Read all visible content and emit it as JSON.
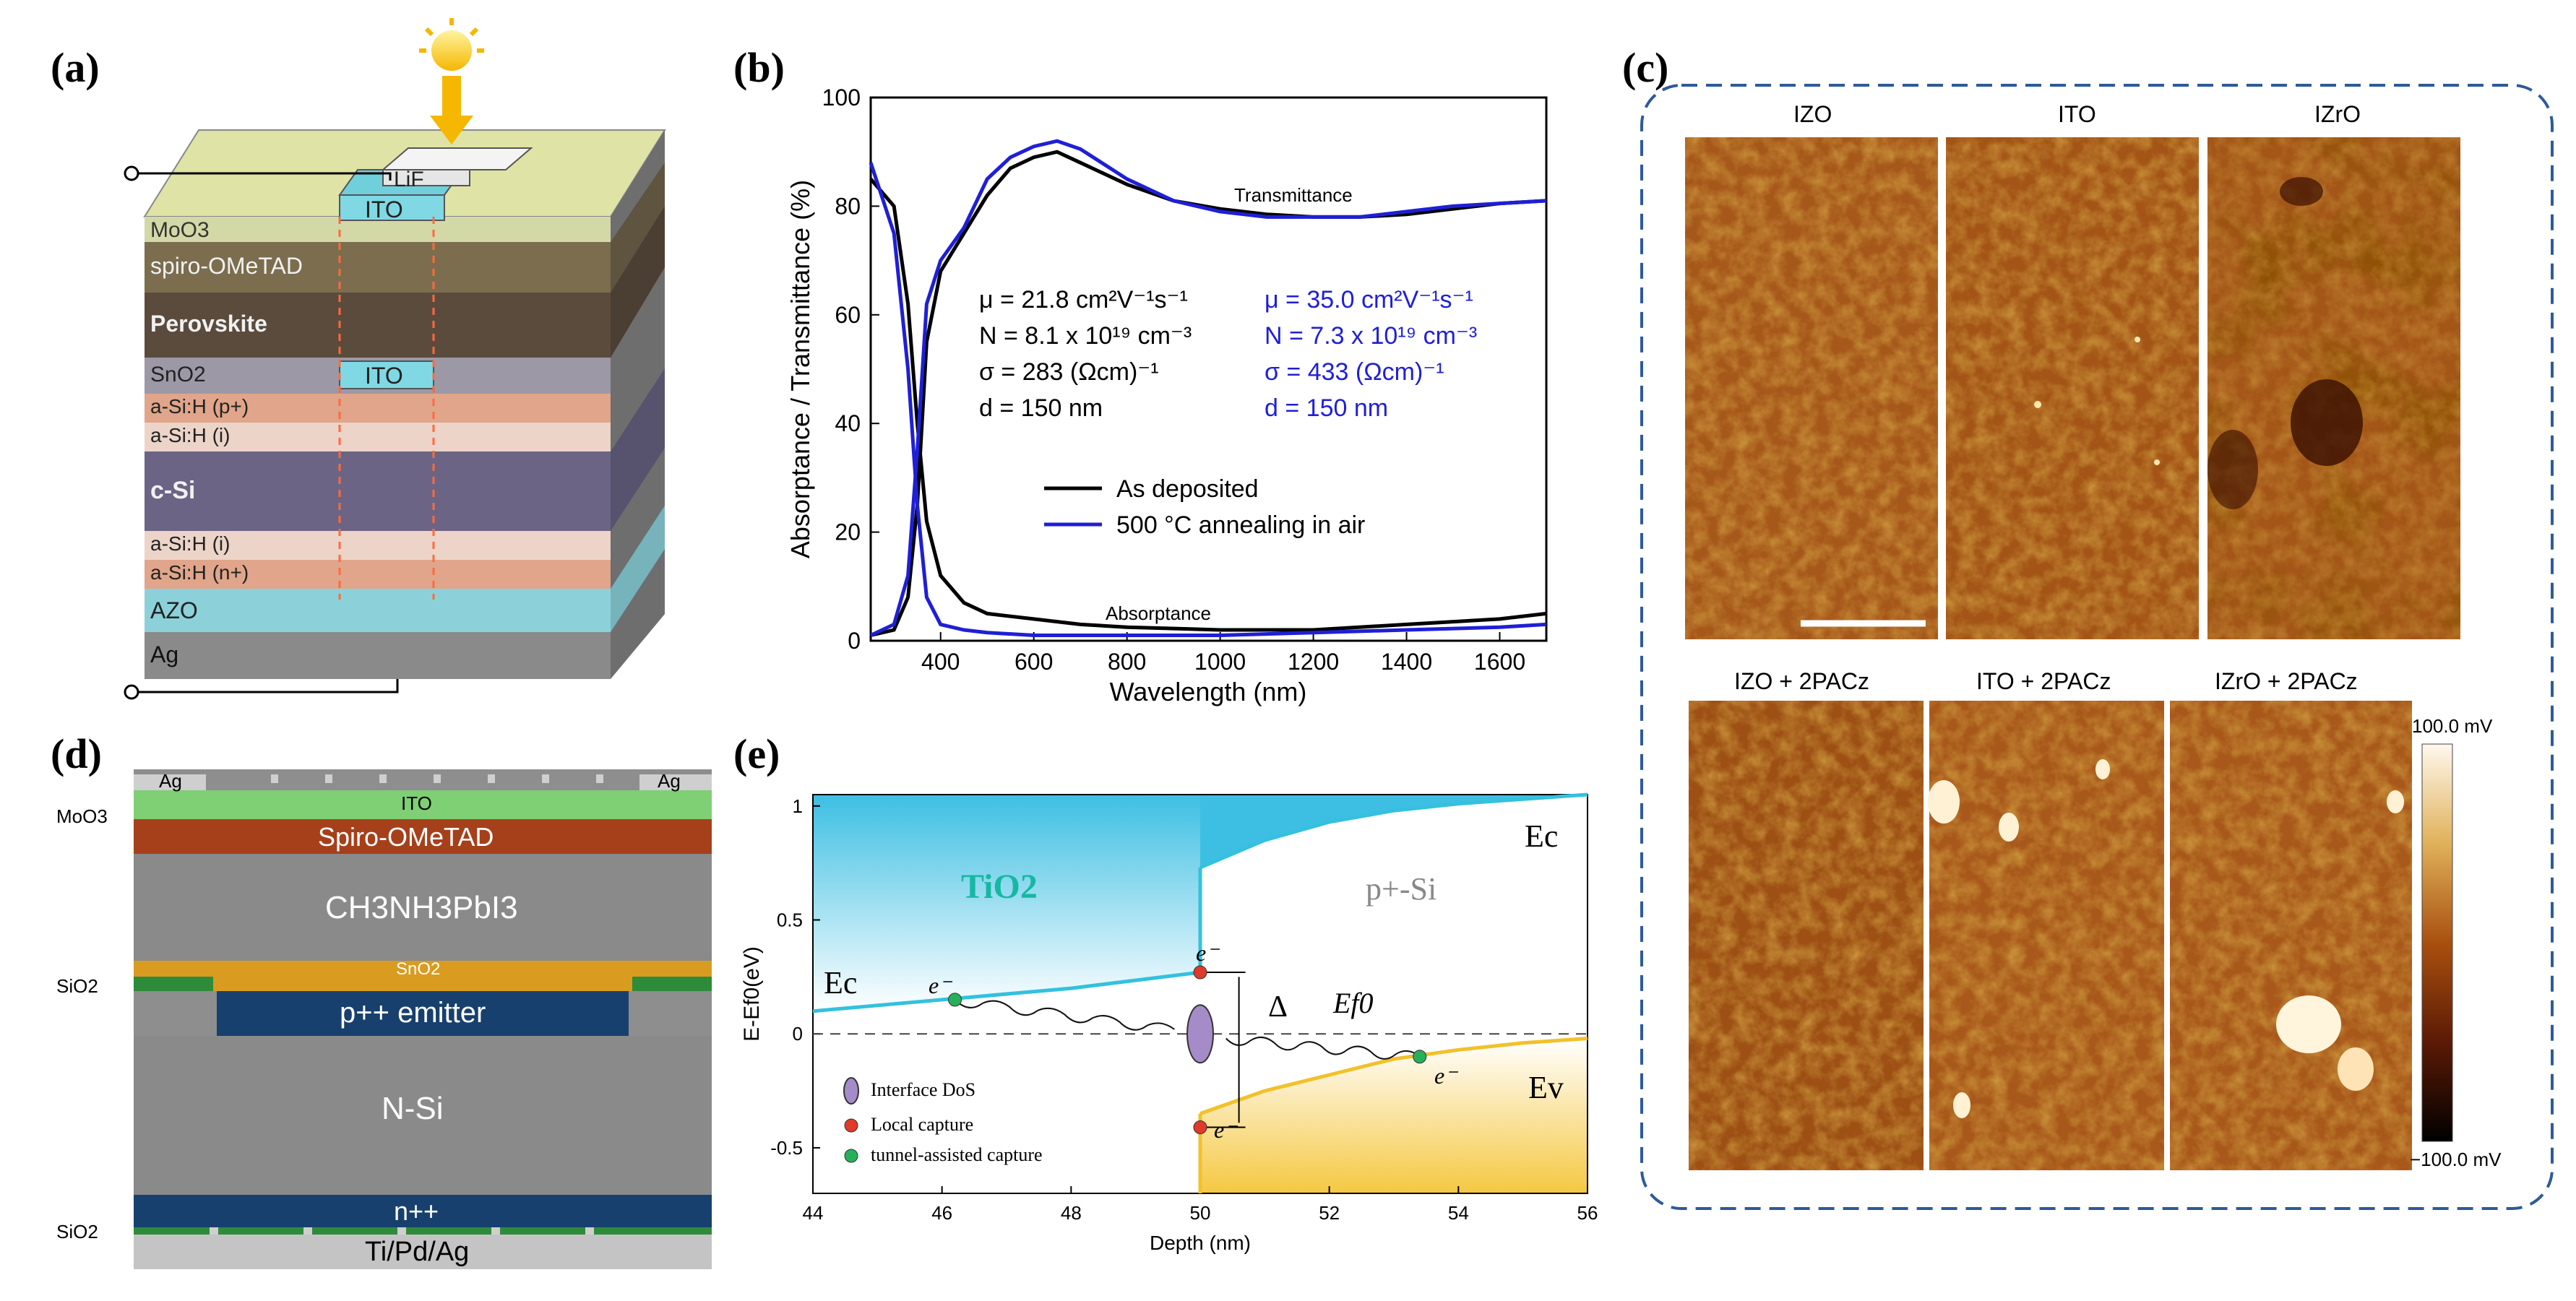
{
  "panels": {
    "a": {
      "label": "(a)",
      "layers": [
        "MoO3",
        "spiro-OMeTAD",
        "Perovskite",
        "SnO2",
        "a-Si:H (p+)",
        "a-Si:H (i)",
        "c-Si",
        "a-Si:H (i)",
        "a-Si:H (n+)",
        "AZO",
        "Ag"
      ],
      "top_labels": [
        "LiF",
        "ITO"
      ],
      "mid_ito": "ITO",
      "colors": {
        "moo3": "#d6dcaa",
        "spiro": "#7b6d4e",
        "perovskite": "#5a4a3c",
        "sno2": "#9d98a6",
        "asi_p": "#e3a98f",
        "asi_i": "#ebd3c6",
        "csi": "#6d6687",
        "asi_n": "#e3a98f",
        "azo": "#8fd3db",
        "ag": "#8c8c8c",
        "ito": "#6fd0dc"
      }
    },
    "b": {
      "label": "(b)",
      "annot_black": [
        "μ = 21.8 cm²V⁻¹s⁻¹",
        "N = 8.1 x 10¹⁹ cm⁻³",
        "σ = 283 (Ωcm)⁻¹",
        "d = 150 nm"
      ],
      "annot_blue": [
        "μ = 35.0 cm²V⁻¹s⁻¹",
        "N = 7.3 x 10¹⁹ cm⁻³",
        "σ = 433 (Ωcm)⁻¹",
        "d = 150 nm"
      ],
      "transmittance_label": "Transmittance",
      "absorptance_label": "Absorptance"
    },
    "c": {
      "label": "(c)",
      "top_titles": [
        "IZO",
        "ITO",
        "IZrO"
      ],
      "bottom_titles": [
        "IZO + 2PACz",
        "ITO + 2PACz",
        "IZrO + 2PACz"
      ],
      "colorbar_max": "100.0 mV",
      "colorbar_min": "−100.0 mV"
    },
    "d": {
      "label": "(d)",
      "ag_left": "Ag",
      "ag_right": "Ag",
      "ito": "ITO",
      "moo3": "MoO3",
      "spiro": "Spiro-OMeTAD",
      "perovskite": "CH3NH3PbI3",
      "sio2_top": "SiO2",
      "sno2": "SnO2",
      "emitter": "p++ emitter",
      "nsi": "N-Si",
      "nplus": "n++",
      "sio2_bottom": "SiO2",
      "contact": "Ti/Pd/Ag"
    },
    "e": {
      "label": "(e)",
      "tio2": "TiO2",
      "psi": "p+-Si",
      "ec": "Ec",
      "ev": "Ev",
      "ef0": "Ef0",
      "delta": "Δ",
      "electron": "e⁻",
      "legend": [
        "Interface DoS",
        "Local capture",
        "tunnel-assisted capture"
      ]
    }
  },
  "chart_data": [
    {
      "type": "line",
      "panel": "b",
      "title": "",
      "xlabel": "Wavelength (nm)",
      "ylabel": "Absorptance / Transmittance (%)",
      "xlim": [
        250,
        1700
      ],
      "ylim": [
        0,
        100
      ],
      "xticks": [
        400,
        600,
        800,
        1000,
        1200,
        1400,
        1600
      ],
      "yticks": [
        0,
        20,
        40,
        60,
        80,
        100
      ],
      "legend": [
        "As deposited",
        "500 °C annealing in air"
      ],
      "series": [
        {
          "name": "As deposited",
          "kind": "transmittance",
          "color": "#000000",
          "points": [
            [
              250,
              1
            ],
            [
              300,
              2
            ],
            [
              330,
              8
            ],
            [
              350,
              25
            ],
            [
              370,
              55
            ],
            [
              400,
              68
            ],
            [
              450,
              75
            ],
            [
              500,
              82
            ],
            [
              550,
              87
            ],
            [
              600,
              89
            ],
            [
              650,
              90
            ],
            [
              700,
              88
            ],
            [
              800,
              84
            ],
            [
              900,
              81
            ],
            [
              1000,
              79.5
            ],
            [
              1100,
              78.5
            ],
            [
              1200,
              78
            ],
            [
              1300,
              78
            ],
            [
              1400,
              78.5
            ],
            [
              1500,
              79.5
            ],
            [
              1600,
              80.5
            ],
            [
              1700,
              81
            ]
          ]
        },
        {
          "name": "As deposited",
          "kind": "absorptance",
          "color": "#000000",
          "points": [
            [
              250,
              85
            ],
            [
              300,
              80
            ],
            [
              330,
              62
            ],
            [
              350,
              40
            ],
            [
              370,
              22
            ],
            [
              400,
              12
            ],
            [
              450,
              7
            ],
            [
              500,
              5
            ],
            [
              600,
              4
            ],
            [
              700,
              3
            ],
            [
              800,
              2.5
            ],
            [
              1000,
              2
            ],
            [
              1200,
              2
            ],
            [
              1400,
              3
            ],
            [
              1600,
              4
            ],
            [
              1700,
              5
            ]
          ]
        },
        {
          "name": "500 °C annealing in air",
          "kind": "transmittance",
          "color": "#1f1fd6",
          "points": [
            [
              250,
              1
            ],
            [
              300,
              3
            ],
            [
              330,
              12
            ],
            [
              350,
              35
            ],
            [
              370,
              62
            ],
            [
              400,
              70
            ],
            [
              450,
              76
            ],
            [
              500,
              85
            ],
            [
              550,
              89
            ],
            [
              600,
              91
            ],
            [
              650,
              92
            ],
            [
              700,
              90.5
            ],
            [
              800,
              85
            ],
            [
              900,
              81
            ],
            [
              1000,
              79
            ],
            [
              1100,
              78
            ],
            [
              1200,
              78
            ],
            [
              1300,
              78
            ],
            [
              1400,
              79
            ],
            [
              1500,
              80
            ],
            [
              1600,
              80.5
            ],
            [
              1700,
              81
            ]
          ]
        },
        {
          "name": "500 °C annealing in air",
          "kind": "absorptance",
          "color": "#1f1fd6",
          "points": [
            [
              250,
              88
            ],
            [
              300,
              75
            ],
            [
              330,
              50
            ],
            [
              350,
              25
            ],
            [
              370,
              8
            ],
            [
              400,
              3
            ],
            [
              450,
              2
            ],
            [
              500,
              1.5
            ],
            [
              600,
              1
            ],
            [
              800,
              1
            ],
            [
              1000,
              1
            ],
            [
              1200,
              1.5
            ],
            [
              1400,
              2
            ],
            [
              1600,
              2.5
            ],
            [
              1700,
              3
            ]
          ]
        }
      ]
    },
    {
      "type": "line",
      "panel": "e",
      "title": "",
      "xlabel": "Depth (nm)",
      "ylabel": "E-Ef0(eV)",
      "xlim": [
        44,
        56
      ],
      "ylim": [
        -0.7,
        1.05
      ],
      "xticks": [
        44,
        46,
        48,
        50,
        52,
        54,
        56
      ],
      "yticks": [
        -0.5,
        0,
        0.5,
        1
      ],
      "series": [
        {
          "name": "Ec (TiO2)",
          "color": "#33c1de",
          "points": [
            [
              44,
              0.1
            ],
            [
              46,
              0.15
            ],
            [
              48,
              0.2
            ],
            [
              50,
              0.27
            ]
          ]
        },
        {
          "name": "Ec (p+-Si)",
          "color": "#33c1de",
          "points": [
            [
              50,
              0.73
            ],
            [
              51,
              0.85
            ],
            [
              52,
              0.93
            ],
            [
              53,
              0.98
            ],
            [
              54,
              1.01
            ],
            [
              55,
              1.03
            ],
            [
              56,
              1.05
            ]
          ]
        },
        {
          "name": "Ev (p+-Si)",
          "color": "#f2c12a",
          "points": [
            [
              50,
              -0.35
            ],
            [
              51,
              -0.25
            ],
            [
              52,
              -0.18
            ],
            [
              53,
              -0.11
            ],
            [
              54,
              -0.07
            ],
            [
              55,
              -0.04
            ],
            [
              56,
              -0.02
            ]
          ]
        },
        {
          "name": "Ef0",
          "color": "#444444",
          "points": [
            [
              44,
              0
            ],
            [
              56,
              0
            ]
          ]
        }
      ],
      "markers": [
        {
          "type": "interface DoS",
          "x": 50,
          "y": 0
        },
        {
          "type": "local capture",
          "x": 50,
          "y": 0.27
        },
        {
          "type": "local capture",
          "x": 50,
          "y": -0.41
        },
        {
          "type": "tunnel-assisted capture",
          "x": 46.2,
          "y": 0.15
        },
        {
          "type": "tunnel-assisted capture",
          "x": 53.4,
          "y": -0.1
        }
      ]
    }
  ]
}
